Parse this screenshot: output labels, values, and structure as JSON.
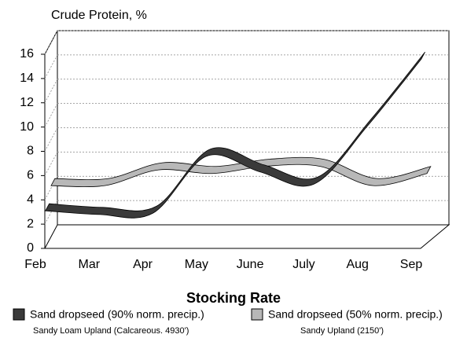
{
  "chart_data": {
    "type": "ribbon",
    "title": "Crude Protein, %",
    "x_label": "Stocking Rate",
    "categories": [
      "Feb",
      "Mar",
      "Apr",
      "May",
      "June",
      "July",
      "Aug",
      "Sep"
    ],
    "ylim": [
      0,
      16
    ],
    "yticks": [
      0,
      2,
      4,
      6,
      8,
      10,
      12,
      14,
      16
    ],
    "grid": true,
    "series": [
      {
        "name": "Sand dropseed (90% norm. precip.)",
        "description": "Sandy Loam Upland (Calcareous. 4930')",
        "color": "#3a3a3a",
        "values": [
          3,
          2.7,
          2.8,
          7.5,
          6.2,
          5.2,
          10,
          15.5
        ]
      },
      {
        "name": "Sand dropseed (50% norm. precip.)",
        "description": "Sandy Upland (2150')",
        "color": "#b8b8b8",
        "values": [
          4.2,
          4.2,
          5.5,
          5.2,
          5.8,
          5.8,
          4.2,
          5.2
        ]
      }
    ]
  }
}
